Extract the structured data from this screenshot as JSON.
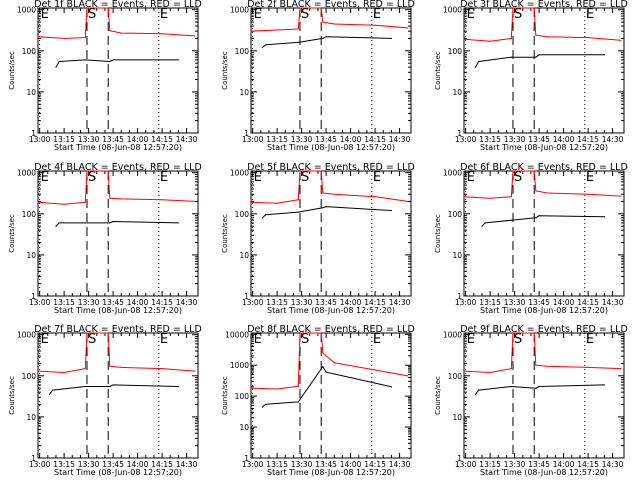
{
  "chart_data": {
    "type": "line",
    "layout": "3x3 grid",
    "xlabel": "Start Time (08-Jun-08 12:57:20)",
    "ylabel": "Counts/sec",
    "yscale": "log",
    "x_ticks": [
      "13:00",
      "13:15",
      "13:30",
      "13:45",
      "14:00",
      "14:15",
      "14:30"
    ],
    "x_range": [
      "12:59",
      "14:37"
    ],
    "colors": {
      "events": "#000000",
      "lld": "#ff0000",
      "frame": "#000000"
    },
    "markers": [
      {
        "label": "E",
        "time": "13:00",
        "line": "dotted"
      },
      {
        "label": "S",
        "time": "13:29",
        "line": "dashed"
      },
      {
        "label": "",
        "time": "13:42",
        "line": "dashed"
      },
      {
        "label": "E",
        "time": "14:13",
        "line": "dotted"
      }
    ],
    "panels": [
      {
        "title": "Det 1f BLACK = Events, RED = LLD",
        "y_ticks": [
          "1",
          "10",
          "100",
          "1000"
        ],
        "ylim": [
          1,
          1100
        ],
        "series": [
          {
            "name": "LLD",
            "color": "#ff0000",
            "x": [
              "12:59",
              "13:15",
              "13:28",
              "13:29",
              "13:42",
              "13:43",
              "13:50",
              "14:15",
              "14:35"
            ],
            "y": [
              220,
              200,
              210,
              1100,
              1100,
              310,
              270,
              260,
              230
            ]
          },
          {
            "name": "Events",
            "color": "#000000",
            "x": [
              "13:10",
              "13:12",
              "13:28",
              "13:43",
              "13:45",
              "14:25"
            ],
            "y": [
              40,
              55,
              60,
              55,
              60,
              60
            ]
          }
        ]
      },
      {
        "title": "Det 2f BLACK = Events, RED = LLD",
        "y_ticks": [
          "1",
          "10",
          "100",
          "1000"
        ],
        "ylim": [
          1,
          1100
        ],
        "series": [
          {
            "name": "LLD",
            "color": "#ff0000",
            "x": [
              "12:59",
              "13:15",
              "13:28",
              "13:29",
              "13:42",
              "13:43",
              "13:50",
              "14:15",
              "14:35"
            ],
            "y": [
              300,
              320,
              340,
              1100,
              1100,
              500,
              450,
              420,
              360
            ]
          },
          {
            "name": "Events",
            "color": "#000000",
            "x": [
              "13:06",
              "13:08",
              "13:28",
              "13:43",
              "13:45",
              "14:25"
            ],
            "y": [
              120,
              140,
              160,
              200,
              220,
              200
            ]
          }
        ]
      },
      {
        "title": "Det 3f BLACK = Events, RED = LLD",
        "y_ticks": [
          "1",
          "10",
          "100",
          "1000"
        ],
        "ylim": [
          1,
          1100
        ],
        "series": [
          {
            "name": "LLD",
            "color": "#ff0000",
            "x": [
              "12:59",
              "13:15",
              "13:28",
              "13:29",
              "13:42",
              "13:43",
              "13:50",
              "14:15",
              "14:35"
            ],
            "y": [
              190,
              170,
              200,
              1100,
              1100,
              240,
              220,
              210,
              180
            ]
          },
          {
            "name": "Events",
            "color": "#000000",
            "x": [
              "13:06",
              "13:08",
              "13:28",
              "13:43",
              "13:45",
              "14:25"
            ],
            "y": [
              40,
              55,
              70,
              70,
              80,
              80
            ]
          }
        ]
      },
      {
        "title": "Det 4f BLACK = Events, RED = LLD",
        "y_ticks": [
          "1",
          "10",
          "100",
          "1000"
        ],
        "ylim": [
          1,
          1100
        ],
        "series": [
          {
            "name": "LLD",
            "color": "#ff0000",
            "x": [
              "12:59",
              "13:15",
              "13:28",
              "13:29",
              "13:42",
              "13:43",
              "13:50",
              "14:15",
              "14:35"
            ],
            "y": [
              190,
              170,
              190,
              1100,
              1100,
              240,
              230,
              220,
              200
            ]
          },
          {
            "name": "Events",
            "color": "#000000",
            "x": [
              "13:10",
              "13:12",
              "13:28",
              "13:43",
              "13:45",
              "14:25"
            ],
            "y": [
              50,
              60,
              60,
              60,
              65,
              60
            ]
          }
        ]
      },
      {
        "title": "Det 5f BLACK = Events, RED = LLD",
        "y_ticks": [
          "1",
          "10",
          "100",
          "1000"
        ],
        "ylim": [
          1,
          1100
        ],
        "series": [
          {
            "name": "LLD",
            "color": "#ff0000",
            "x": [
              "12:59",
              "13:15",
              "13:28",
              "13:29",
              "13:42",
              "13:43",
              "13:50",
              "14:15",
              "14:35"
            ],
            "y": [
              190,
              180,
              220,
              1100,
              1100,
              320,
              300,
              260,
              200
            ]
          },
          {
            "name": "Events",
            "color": "#000000",
            "x": [
              "13:06",
              "13:08",
              "13:28",
              "13:43",
              "13:45",
              "14:25"
            ],
            "y": [
              80,
              95,
              110,
              140,
              150,
              120
            ]
          }
        ]
      },
      {
        "title": "Det 6f BLACK = Events, RED = LLD",
        "y_ticks": [
          "1",
          "10",
          "100",
          "1000"
        ],
        "ylim": [
          1,
          1100
        ],
        "series": [
          {
            "name": "LLD",
            "color": "#ff0000",
            "x": [
              "12:59",
              "13:15",
              "13:28",
              "13:29",
              "13:42",
              "13:43",
              "13:50",
              "14:15",
              "14:35"
            ],
            "y": [
              260,
              240,
              260,
              1100,
              1100,
              360,
              320,
              300,
              270
            ]
          },
          {
            "name": "Events",
            "color": "#000000",
            "x": [
              "13:10",
              "13:12",
              "13:28",
              "13:43",
              "13:45",
              "14:25"
            ],
            "y": [
              50,
              60,
              70,
              80,
              90,
              85
            ]
          }
        ]
      },
      {
        "title": "Det 7f BLACK = Events, RED = LLD",
        "y_ticks": [
          "1",
          "10",
          "100",
          "1000"
        ],
        "ylim": [
          1,
          1100
        ],
        "series": [
          {
            "name": "LLD",
            "color": "#ff0000",
            "x": [
              "12:59",
              "13:15",
              "13:28",
              "13:29",
              "13:42",
              "13:43",
              "13:50",
              "14:15",
              "14:35"
            ],
            "y": [
              130,
              120,
              150,
              1100,
              1100,
              170,
              160,
              150,
              130
            ]
          },
          {
            "name": "Events",
            "color": "#000000",
            "x": [
              "13:06",
              "13:08",
              "13:28",
              "13:43",
              "13:45",
              "14:25"
            ],
            "y": [
              35,
              45,
              55,
              55,
              60,
              55
            ]
          }
        ]
      },
      {
        "title": "Det 8f BLACK = Events, RED = LLD",
        "y_ticks": [
          "1",
          "10",
          "100",
          "1000",
          "10000"
        ],
        "ylim": [
          1,
          11000
        ],
        "series": [
          {
            "name": "LLD",
            "color": "#ff0000",
            "x": [
              "12:59",
              "13:15",
              "13:28",
              "13:29",
              "13:42",
              "13:43",
              "13:50",
              "14:15",
              "14:35"
            ],
            "y": [
              180,
              170,
              210,
              11000,
              11000,
              2500,
              1200,
              700,
              450
            ]
          },
          {
            "name": "Events",
            "color": "#000000",
            "x": [
              "13:06",
              "13:08",
              "13:28",
              "13:43",
              "13:45",
              "14:25"
            ],
            "y": [
              45,
              55,
              65,
              900,
              600,
              200
            ]
          }
        ]
      },
      {
        "title": "Det 9f BLACK = Events, RED = LLD",
        "y_ticks": [
          "1",
          "10",
          "100",
          "1000"
        ],
        "ylim": [
          1,
          1100
        ],
        "series": [
          {
            "name": "LLD",
            "color": "#ff0000",
            "x": [
              "12:59",
              "13:15",
              "13:28",
              "13:29",
              "13:42",
              "13:43",
              "13:50",
              "14:15",
              "14:35"
            ],
            "y": [
              130,
              120,
              150,
              1100,
              1100,
              180,
              170,
              160,
              150
            ]
          },
          {
            "name": "Events",
            "color": "#000000",
            "x": [
              "13:06",
              "13:08",
              "13:28",
              "13:43",
              "13:45",
              "14:25"
            ],
            "y": [
              35,
              45,
              55,
              50,
              55,
              60
            ]
          }
        ]
      }
    ]
  }
}
